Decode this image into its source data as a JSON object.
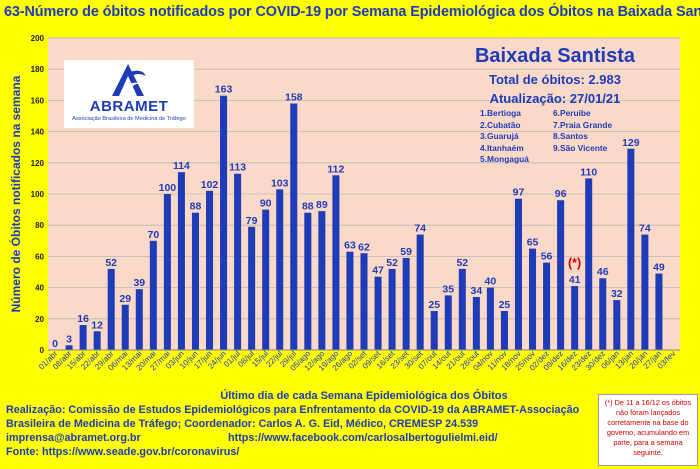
{
  "title": "63-Número de óbitos notificados por COVID-19 por Semana Epidemiológica dos Óbitos na Baixada Santista",
  "logo": {
    "name": "ABRAMET",
    "subtitle": "Associação Brasileira de Medicina de Tráfego",
    "color": "#1f3cb8"
  },
  "info": {
    "region": "Baixada Santista",
    "total": "Total de óbitos: 2.983",
    "updated": "Atualização: 27/01/21",
    "cities_col1": [
      "1.Bertioga",
      "2.Cubatão",
      "3.Guarujá",
      "4.Itanhaém",
      "5.Mongaguá"
    ],
    "cities_col2": [
      "6.Peruibe",
      "7.Praia Grande",
      "8.Santos",
      "9.São Vicente"
    ]
  },
  "annotation": "(*)",
  "footer": {
    "line1": "Realização: Comissão de Estudos Epidemiológicos para Enfrentamento da COVID-19 da ABRAMET-Associação",
    "line2": "Brasileira de Medicina de Tráfego; Coordenador: Carlos A. G. Eid, Médico, CREMESP 24.539",
    "email": "imprensa@abramet.org.br",
    "facebook": "https://www.facebook.com/carlosalbertogulielmi.eid/",
    "source": "Fonte: https://www.seade.gov.br/coronavirus/"
  },
  "note": "(*) De 11 a 16/12 os óbitos não foram lançados corretamente na base do governo, acumulando em parte, para a semana seguinte.",
  "chart_data": {
    "type": "bar",
    "title": "63-Número de óbitos notificados por COVID-19 por Semana Epidemiológica dos Óbitos na Baixada Santista",
    "xlabel": "Último dia de cada Semana Epidemiológica dos Óbitos",
    "ylabel": "Número de Óbitos notificados na semana",
    "ylim": [
      0,
      200
    ],
    "yticks": [
      0,
      20,
      40,
      60,
      80,
      100,
      120,
      140,
      160,
      180,
      200
    ],
    "grid": true,
    "bar_color": "#1f3cb8",
    "plot_background": "#fbd9c8",
    "categories": [
      "01/abr",
      "08/abr",
      "15/abr",
      "22/abr",
      "29/abr",
      "06/mai",
      "13/mai",
      "20/mai",
      "27/mai",
      "03/jun",
      "10/jun",
      "17/jun",
      "24/jun",
      "01/jul",
      "08/jul",
      "15/jul",
      "22/jul",
      "29/jul",
      "05/ago",
      "12/ago",
      "19/ago",
      "26/ago",
      "02/set",
      "09/set",
      "16/set",
      "23/set",
      "30/set",
      "07/out",
      "14/out",
      "21/out",
      "28/out",
      "04/nov",
      "11/nov",
      "18/nov",
      "25/nov",
      "02/dez",
      "09/dez",
      "16/dez",
      "23/dez",
      "30/dez",
      "06/jan",
      "13/jan",
      "20/jan",
      "27/jan",
      "03/fev"
    ],
    "values": [
      0,
      3,
      16,
      12,
      52,
      29,
      39,
      70,
      100,
      114,
      88,
      102,
      163,
      113,
      79,
      90,
      103,
      158,
      88,
      89,
      112,
      63,
      62,
      47,
      52,
      59,
      74,
      25,
      35,
      52,
      34,
      40,
      25,
      97,
      65,
      56,
      96,
      41,
      110,
      46,
      32,
      129,
      74,
      49,
      null
    ]
  }
}
